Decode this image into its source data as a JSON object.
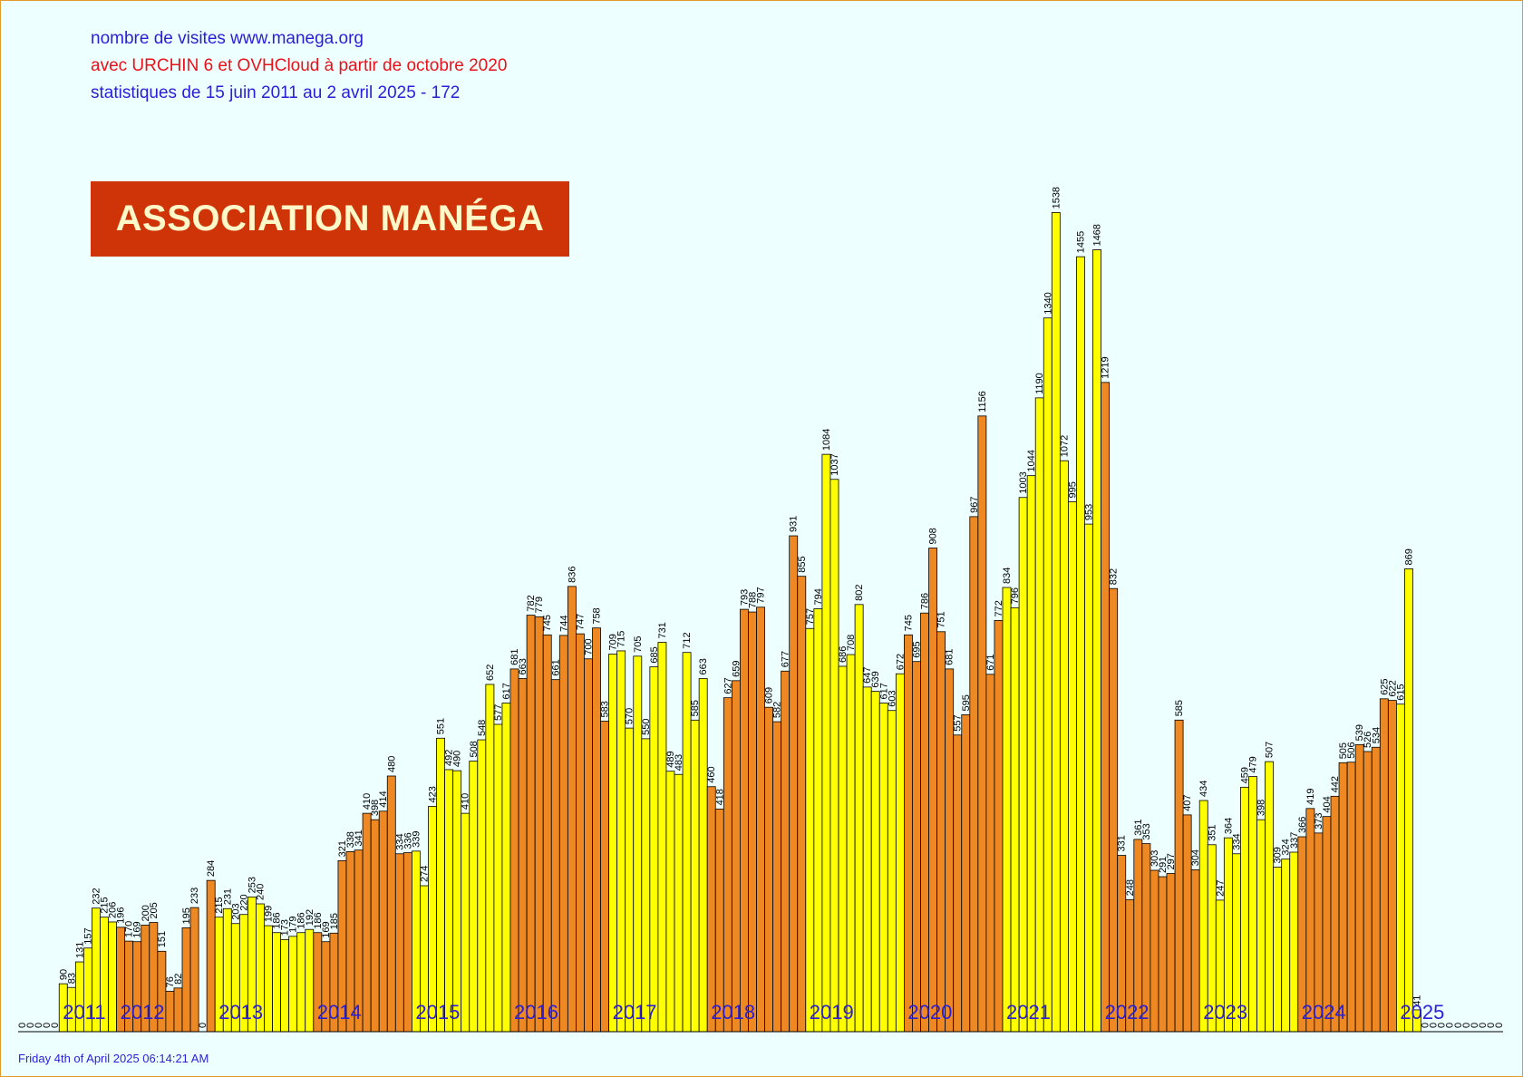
{
  "header": {
    "line1": "nombre de visites www.manega.org",
    "line2": "avec URCHIN 6 et OVHCloud à partir de octobre 2020",
    "line3": "statistiques de 15 juin 2011 au 2 avril 2025 - 172",
    "banner": "ASSOCIATION MANÉGA"
  },
  "footer": {
    "timestamp": "Friday 4th of April 2025 06:14:21 AM"
  },
  "colors": {
    "background": "#eeffff",
    "bar_yellow": "#ffff00",
    "bar_orange": "#ee8822",
    "year_label": "#2a1fd6",
    "title_blue": "#2a1fd6",
    "title_red": "#e8121a",
    "banner_bg": "#cf3409",
    "banner_text": "#fff8c8"
  },
  "chart_data": {
    "type": "bar",
    "title": "nombre de visites www.manega.org",
    "ylim": [
      0,
      2000
    ],
    "grid": false,
    "legend": "none",
    "colors_alternate_by_year": true,
    "years": [
      "2011",
      "2012",
      "2013",
      "2014",
      "2015",
      "2016",
      "2017",
      "2018",
      "2019",
      "2020",
      "2021",
      "2022",
      "2023",
      "2024",
      "2025"
    ],
    "values": [
      0,
      0,
      0,
      0,
      0,
      90,
      83,
      131,
      157,
      232,
      215,
      206,
      196,
      170,
      169,
      200,
      205,
      151,
      76,
      82,
      195,
      233,
      0,
      284,
      215,
      231,
      203,
      220,
      253,
      240,
      199,
      186,
      173,
      179,
      186,
      192,
      186,
      169,
      185,
      321,
      338,
      341,
      410,
      398,
      414,
      480,
      334,
      336,
      339,
      274,
      423,
      551,
      492,
      490,
      410,
      508,
      548,
      652,
      577,
      617,
      681,
      663,
      782,
      779,
      745,
      661,
      744,
      836,
      747,
      700,
      758,
      583,
      709,
      715,
      570,
      705,
      550,
      685,
      731,
      489,
      483,
      712,
      585,
      663,
      460,
      418,
      627,
      659,
      793,
      788,
      797,
      609,
      582,
      677,
      931,
      855,
      757,
      794,
      1084,
      1037,
      686,
      708,
      802,
      647,
      639,
      617,
      603,
      672,
      745,
      695,
      786,
      908,
      751,
      681,
      557,
      595,
      967,
      1156,
      671,
      772,
      834,
      796,
      1003,
      1044,
      1190,
      1340,
      1538,
      1072,
      995,
      1455,
      953,
      1468,
      1219,
      832,
      331,
      248,
      361,
      353,
      303,
      291,
      297,
      585,
      407,
      304,
      434,
      351,
      247,
      364,
      334,
      459,
      479,
      398,
      507,
      309,
      324,
      337,
      366,
      419,
      373,
      404,
      442,
      505,
      506,
      539,
      526,
      534,
      625,
      622,
      615,
      869,
      41,
      0,
      0,
      0,
      0,
      0,
      0,
      0,
      0,
      0,
      0
    ]
  }
}
